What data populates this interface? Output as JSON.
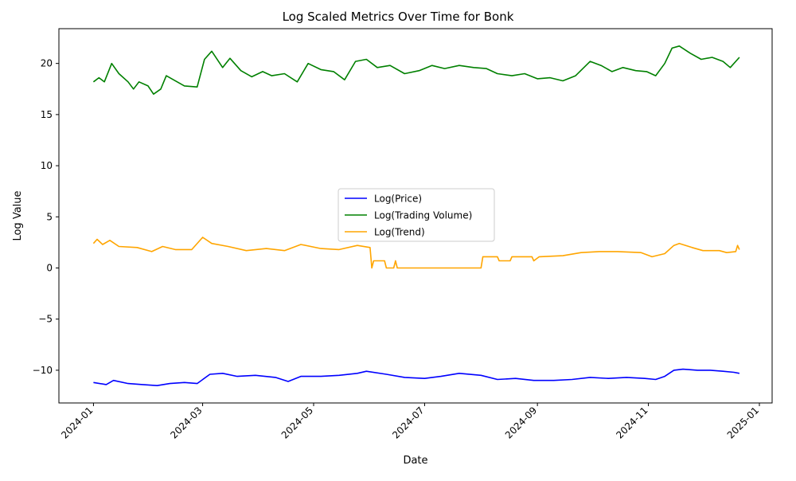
{
  "chart_data": {
    "type": "line",
    "title": "Log Scaled Metrics Over Time for Bonk",
    "xlabel": "Date",
    "ylabel": "Log Value",
    "x_ticks": [
      "2024-01",
      "2024-03",
      "2024-05",
      "2024-07",
      "2024-09",
      "2024-11",
      "2025-01"
    ],
    "y_ticks": [
      "−10",
      "−5",
      "0",
      "5",
      "10",
      "15",
      "20"
    ],
    "xlim": [
      "2023-12-13",
      "2025-01-08"
    ],
    "ylim": [
      -13.2,
      23.4
    ],
    "legend_position": "center",
    "grid": false,
    "series": [
      {
        "name": "Log(Price)",
        "color": "#0000ff",
        "points": [
          [
            "2024-01-01",
            -11.2
          ],
          [
            "2024-01-08",
            -11.4
          ],
          [
            "2024-01-12",
            -11.0
          ],
          [
            "2024-01-20",
            -11.3
          ],
          [
            "2024-01-28",
            -11.4
          ],
          [
            "2024-02-05",
            -11.5
          ],
          [
            "2024-02-12",
            -11.3
          ],
          [
            "2024-02-20",
            -11.2
          ],
          [
            "2024-02-27",
            -11.3
          ],
          [
            "2024-03-05",
            -10.4
          ],
          [
            "2024-03-12",
            -10.3
          ],
          [
            "2024-03-20",
            -10.6
          ],
          [
            "2024-03-30",
            -10.5
          ],
          [
            "2024-04-10",
            -10.7
          ],
          [
            "2024-04-17",
            -11.1
          ],
          [
            "2024-04-24",
            -10.6
          ],
          [
            "2024-05-05",
            -10.6
          ],
          [
            "2024-05-15",
            -10.5
          ],
          [
            "2024-05-25",
            -10.3
          ],
          [
            "2024-05-30",
            -10.1
          ],
          [
            "2024-06-10",
            -10.4
          ],
          [
            "2024-06-20",
            -10.7
          ],
          [
            "2024-07-01",
            -10.8
          ],
          [
            "2024-07-10",
            -10.6
          ],
          [
            "2024-07-20",
            -10.3
          ],
          [
            "2024-08-01",
            -10.5
          ],
          [
            "2024-08-10",
            -10.9
          ],
          [
            "2024-08-20",
            -10.8
          ],
          [
            "2024-08-30",
            -11.0
          ],
          [
            "2024-09-10",
            -11.0
          ],
          [
            "2024-09-20",
            -10.9
          ],
          [
            "2024-09-30",
            -10.7
          ],
          [
            "2024-10-10",
            -10.8
          ],
          [
            "2024-10-20",
            -10.7
          ],
          [
            "2024-10-30",
            -10.8
          ],
          [
            "2024-11-05",
            -10.9
          ],
          [
            "2024-11-10",
            -10.6
          ],
          [
            "2024-11-15",
            -10.0
          ],
          [
            "2024-11-20",
            -9.9
          ],
          [
            "2024-11-28",
            -10.0
          ],
          [
            "2024-12-05",
            -10.0
          ],
          [
            "2024-12-12",
            -10.1
          ],
          [
            "2024-12-18",
            -10.2
          ],
          [
            "2024-12-21",
            -10.3
          ]
        ]
      },
      {
        "name": "Log(Trading Volume)",
        "color": "#008000",
        "points": [
          [
            "2024-01-01",
            18.2
          ],
          [
            "2024-01-04",
            18.6
          ],
          [
            "2024-01-07",
            18.2
          ],
          [
            "2024-01-11",
            20.0
          ],
          [
            "2024-01-15",
            19.0
          ],
          [
            "2024-01-20",
            18.2
          ],
          [
            "2024-01-23",
            17.5
          ],
          [
            "2024-01-26",
            18.2
          ],
          [
            "2024-01-31",
            17.8
          ],
          [
            "2024-02-03",
            17.0
          ],
          [
            "2024-02-07",
            17.5
          ],
          [
            "2024-02-10",
            18.8
          ],
          [
            "2024-02-16",
            18.2
          ],
          [
            "2024-02-20",
            17.8
          ],
          [
            "2024-02-27",
            17.7
          ],
          [
            "2024-03-02",
            20.4
          ],
          [
            "2024-03-06",
            21.2
          ],
          [
            "2024-03-12",
            19.6
          ],
          [
            "2024-03-16",
            20.5
          ],
          [
            "2024-03-22",
            19.3
          ],
          [
            "2024-03-28",
            18.7
          ],
          [
            "2024-04-03",
            19.2
          ],
          [
            "2024-04-08",
            18.8
          ],
          [
            "2024-04-15",
            19.0
          ],
          [
            "2024-04-22",
            18.2
          ],
          [
            "2024-04-28",
            20.0
          ],
          [
            "2024-05-05",
            19.4
          ],
          [
            "2024-05-12",
            19.2
          ],
          [
            "2024-05-18",
            18.4
          ],
          [
            "2024-05-24",
            20.2
          ],
          [
            "2024-05-30",
            20.4
          ],
          [
            "2024-06-05",
            19.6
          ],
          [
            "2024-06-12",
            19.8
          ],
          [
            "2024-06-20",
            19.0
          ],
          [
            "2024-06-28",
            19.3
          ],
          [
            "2024-07-05",
            19.8
          ],
          [
            "2024-07-12",
            19.5
          ],
          [
            "2024-07-20",
            19.8
          ],
          [
            "2024-07-28",
            19.6
          ],
          [
            "2024-08-04",
            19.5
          ],
          [
            "2024-08-10",
            19.0
          ],
          [
            "2024-08-18",
            18.8
          ],
          [
            "2024-08-25",
            19.0
          ],
          [
            "2024-09-01",
            18.5
          ],
          [
            "2024-09-08",
            18.6
          ],
          [
            "2024-09-15",
            18.3
          ],
          [
            "2024-09-22",
            18.8
          ],
          [
            "2024-09-30",
            20.2
          ],
          [
            "2024-10-06",
            19.8
          ],
          [
            "2024-10-12",
            19.2
          ],
          [
            "2024-10-18",
            19.6
          ],
          [
            "2024-10-25",
            19.3
          ],
          [
            "2024-10-31",
            19.2
          ],
          [
            "2024-11-05",
            18.8
          ],
          [
            "2024-11-10",
            20.0
          ],
          [
            "2024-11-14",
            21.5
          ],
          [
            "2024-11-18",
            21.7
          ],
          [
            "2024-11-24",
            21.0
          ],
          [
            "2024-11-30",
            20.4
          ],
          [
            "2024-12-06",
            20.6
          ],
          [
            "2024-12-12",
            20.2
          ],
          [
            "2024-12-16",
            19.6
          ],
          [
            "2024-12-21",
            20.6
          ]
        ]
      },
      {
        "name": "Log(Trend)",
        "color": "#ffa500",
        "points": [
          [
            "2024-01-01",
            2.4
          ],
          [
            "2024-01-03",
            2.8
          ],
          [
            "2024-01-06",
            2.3
          ],
          [
            "2024-01-10",
            2.7
          ],
          [
            "2024-01-15",
            2.1
          ],
          [
            "2024-01-25",
            2.0
          ],
          [
            "2024-02-02",
            1.6
          ],
          [
            "2024-02-08",
            2.1
          ],
          [
            "2024-02-15",
            1.8
          ],
          [
            "2024-02-24",
            1.8
          ],
          [
            "2024-03-01",
            3.0
          ],
          [
            "2024-03-06",
            2.4
          ],
          [
            "2024-03-15",
            2.1
          ],
          [
            "2024-03-25",
            1.7
          ],
          [
            "2024-04-05",
            1.9
          ],
          [
            "2024-04-15",
            1.7
          ],
          [
            "2024-04-24",
            2.3
          ],
          [
            "2024-05-05",
            1.9
          ],
          [
            "2024-05-15",
            1.8
          ],
          [
            "2024-05-25",
            2.2
          ],
          [
            "2024-06-01",
            2.0
          ],
          [
            "2024-06-02",
            0.0
          ],
          [
            "2024-06-03",
            0.7
          ],
          [
            "2024-06-09",
            0.7
          ],
          [
            "2024-06-10",
            0.0
          ],
          [
            "2024-06-14",
            0.0
          ],
          [
            "2024-06-15",
            0.7
          ],
          [
            "2024-06-16",
            0.0
          ],
          [
            "2024-08-01",
            0.0
          ],
          [
            "2024-08-02",
            1.1
          ],
          [
            "2024-08-10",
            1.1
          ],
          [
            "2024-08-11",
            0.7
          ],
          [
            "2024-08-17",
            0.7
          ],
          [
            "2024-08-18",
            1.1
          ],
          [
            "2024-08-29",
            1.1
          ],
          [
            "2024-08-30",
            0.7
          ],
          [
            "2024-09-02",
            1.1
          ],
          [
            "2024-09-15",
            1.2
          ],
          [
            "2024-09-25",
            1.5
          ],
          [
            "2024-10-05",
            1.6
          ],
          [
            "2024-10-15",
            1.6
          ],
          [
            "2024-10-28",
            1.5
          ],
          [
            "2024-11-03",
            1.1
          ],
          [
            "2024-11-10",
            1.4
          ],
          [
            "2024-11-15",
            2.2
          ],
          [
            "2024-11-18",
            2.4
          ],
          [
            "2024-11-25",
            2.0
          ],
          [
            "2024-12-01",
            1.7
          ],
          [
            "2024-12-10",
            1.7
          ],
          [
            "2024-12-14",
            1.5
          ],
          [
            "2024-12-19",
            1.6
          ],
          [
            "2024-12-20",
            2.2
          ],
          [
            "2024-12-21",
            1.8
          ]
        ]
      }
    ]
  }
}
